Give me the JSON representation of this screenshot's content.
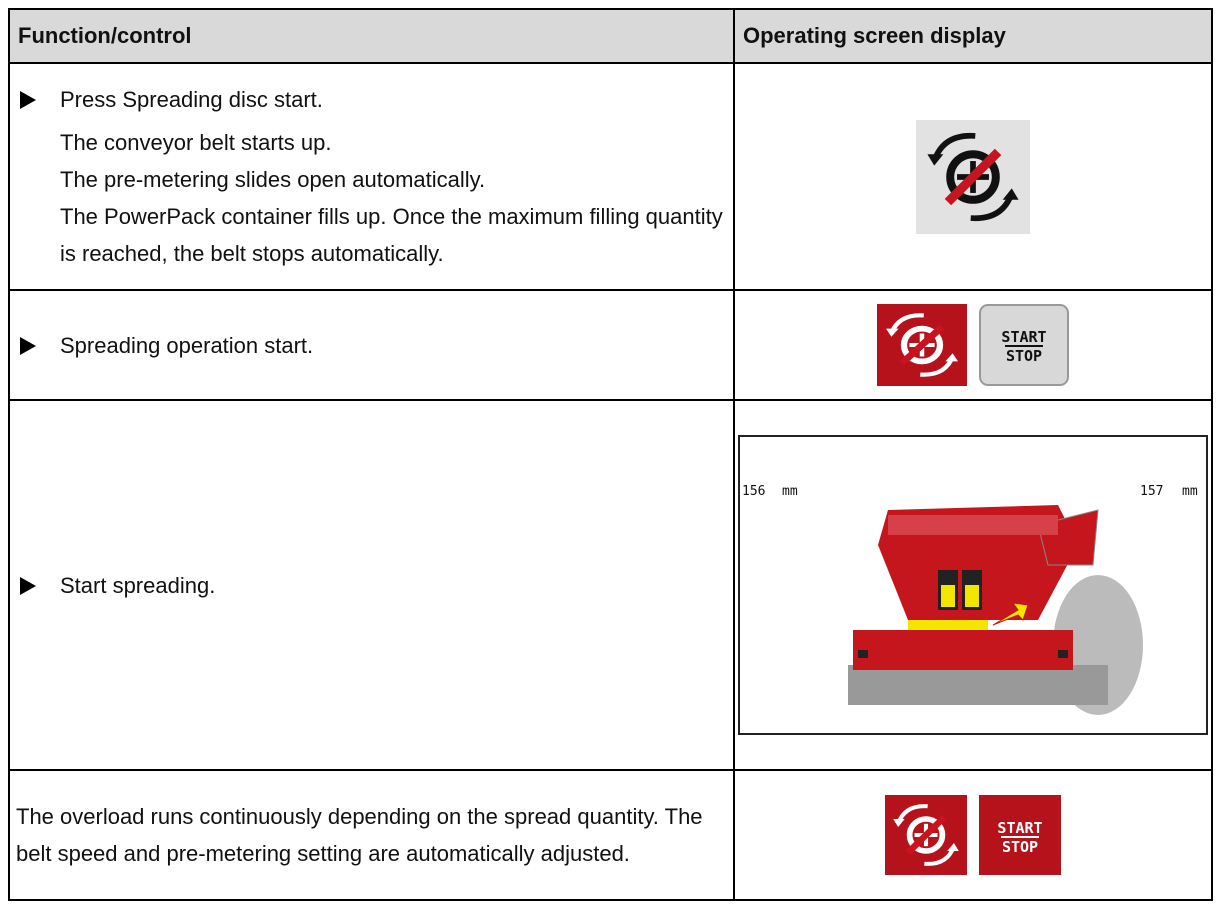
{
  "table": {
    "header": [
      "Function/control",
      "Operating screen display"
    ],
    "rows": [
      {
        "step": "Press Spreading disc start.",
        "results": [
          "The conveyor belt starts up.",
          "The pre-metering slides open automatically.",
          "The PowerPack container fills up. Once the maximum filling quantity is reached, the belt stops automatically."
        ]
      },
      {
        "step": "Spreading operation start.",
        "display": [
          "START",
          "STOP"
        ]
      },
      {
        "step": "Start spreading.",
        "display": [
          "156",
          "mm",
          "157",
          "mm"
        ]
      },
      {
        "text": "The overload runs continuously depending on the spread quantity. The belt speed and pre-metering setting are automatically adjusted.",
        "display": [
          "START",
          "STOP"
        ]
      }
    ]
  }
}
